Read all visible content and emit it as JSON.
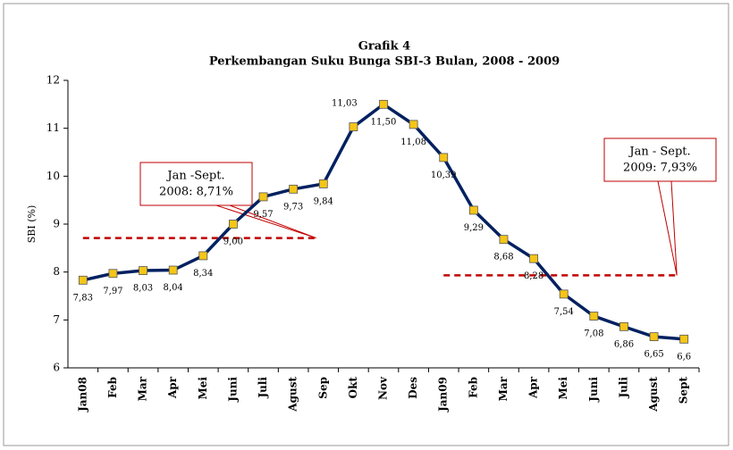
{
  "chart_data": {
    "type": "line",
    "title": "Grafik 4",
    "subtitle": "Perkembangan Suku Bunga SBI-3 Bulan, 2008 - 2009",
    "y_label": "SBI (%)",
    "categories": [
      "Jan08",
      "Feb",
      "Mar",
      "Apr",
      "Mei",
      "Juni",
      "Juli",
      "Agust",
      "Sep",
      "Okt",
      "Nov",
      "Des",
      "Jan09",
      "Feb",
      "Mar",
      "Apr",
      "Mei",
      "Juni",
      "Juli",
      "Agust",
      "Sept"
    ],
    "series": [
      {
        "name": "SBI-3 Bulan",
        "color": "#002060",
        "values": [
          7.83,
          7.97,
          8.03,
          8.04,
          8.34,
          9.0,
          9.57,
          9.73,
          9.84,
          11.03,
          11.5,
          11.08,
          10.39,
          9.29,
          8.68,
          8.28,
          7.54,
          7.08,
          6.86,
          6.65,
          6.6
        ],
        "value_labels": [
          "7,83",
          "7,97",
          "8,03",
          "8,04",
          "8,34",
          "9,00",
          "9,57",
          "9,73",
          "9,84",
          "11,03",
          "11,50",
          "11,08",
          "10,39",
          "9,29",
          "8,68",
          "8,28",
          "7,54",
          "7,08",
          "6,86",
          "6,65",
          "6,6"
        ]
      }
    ],
    "marker_color": "#f5c518",
    "ylim": [
      6,
      12
    ],
    "yticks": [
      6,
      7,
      8,
      9,
      10,
      11,
      12
    ],
    "reference_lines": [
      {
        "value": 8.71,
        "color": "#c00000",
        "label_lines": [
          "Jan -Sept.",
          "2008: 8,71%"
        ]
      },
      {
        "value": 7.93,
        "color": "#c00000",
        "label_lines": [
          "Jan - Sept.",
          "2009: 7,93%"
        ]
      }
    ]
  }
}
